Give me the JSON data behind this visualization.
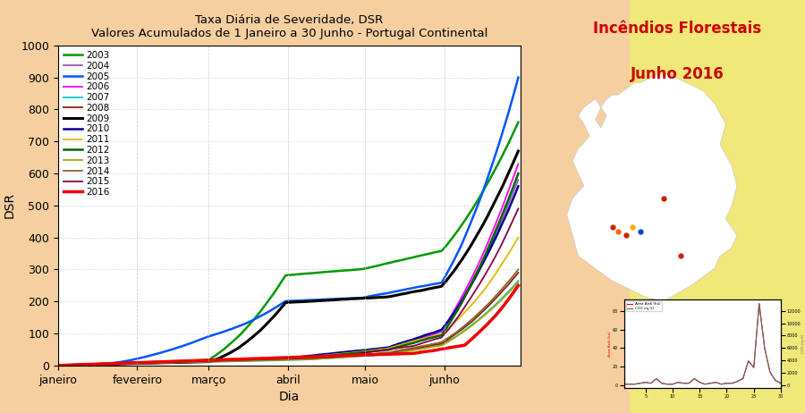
{
  "title_line1": "Taxa Diária de Severidade, DSR",
  "title_line2": "Valores Acumulados de 1 Janeiro a 30 Junho - Portugal Continental",
  "xlabel": "Dia",
  "ylabel": "DSR",
  "ylim": [
    0,
    1000
  ],
  "months": [
    "janeiro",
    "fevereiro",
    "março",
    "abril",
    "maio",
    "junho"
  ],
  "month_days": [
    0,
    31,
    59,
    90,
    120,
    151
  ],
  "background_color": "#f5cfa0",
  "plot_bg_color": "#ffffff",
  "grid_color": "#cccccc",
  "right_panel_bg": "#3355cc",
  "right_panel_right_bg": "#f0e878",
  "right_title_line1": "Incêndios Florestais",
  "right_title_line2": "Junho 2016",
  "right_title_color": "#cc0000",
  "years": [
    "2003",
    "2004",
    "2005",
    "2006",
    "2007",
    "2008",
    "2009",
    "2010",
    "2011",
    "2012",
    "2013",
    "2014",
    "2015",
    "2016"
  ],
  "colors": {
    "2003": "#009900",
    "2004": "#9955bb",
    "2005": "#0055ff",
    "2006": "#ff00ff",
    "2007": "#00cccc",
    "2008": "#882200",
    "2009": "#000000",
    "2010": "#000099",
    "2011": "#ddbb00",
    "2012": "#006600",
    "2013": "#aaaa00",
    "2014": "#886633",
    "2015": "#880044",
    "2016": "#ee0000"
  },
  "linewidths": {
    "2003": 1.8,
    "2004": 1.3,
    "2005": 1.8,
    "2006": 1.3,
    "2007": 1.3,
    "2008": 1.3,
    "2009": 2.2,
    "2010": 1.8,
    "2011": 1.3,
    "2012": 1.8,
    "2013": 1.3,
    "2014": 1.3,
    "2015": 1.3,
    "2016": 2.5
  },
  "year_finals": {
    "2003": 760,
    "2004": 580,
    "2005": 900,
    "2006": 630,
    "2007": 265,
    "2008": 290,
    "2009": 670,
    "2010": 560,
    "2011": 400,
    "2012": 600,
    "2013": 260,
    "2014": 300,
    "2015": 490,
    "2016": 250
  }
}
